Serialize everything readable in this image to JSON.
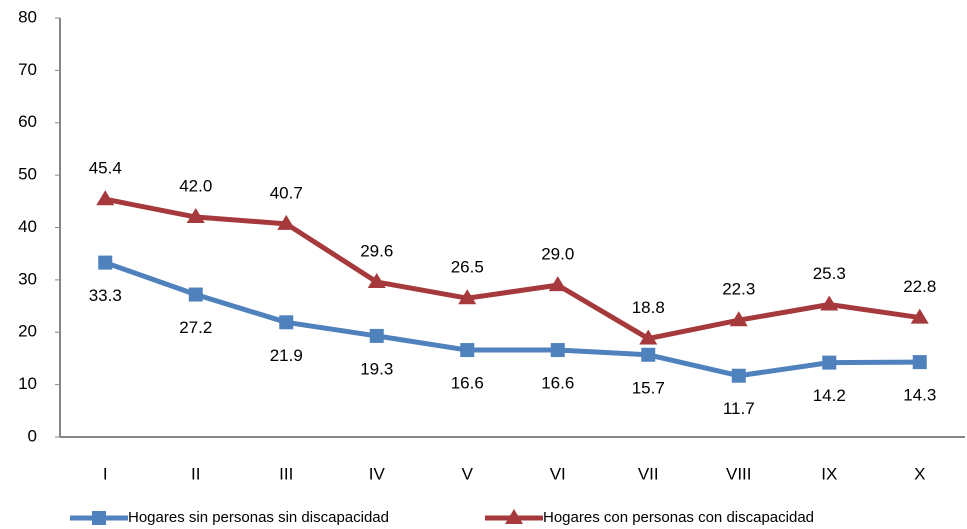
{
  "chart_data": {
    "type": "line",
    "categories": [
      "I",
      "II",
      "III",
      "IV",
      "V",
      "VI",
      "VII",
      "VIII",
      "IX",
      "X"
    ],
    "series": [
      {
        "name": "Hogares sin personas sin discapacidad",
        "color": "#4f81bd",
        "marker": "square",
        "values": [
          33.3,
          27.2,
          21.9,
          19.3,
          16.6,
          16.6,
          15.7,
          11.7,
          14.2,
          14.3
        ],
        "value_labels": [
          "33.3",
          "27.2",
          "21.9",
          "19.3",
          "16.6",
          "16.6",
          "15.7",
          "11.7",
          "14.2",
          "14.3"
        ]
      },
      {
        "name": "Hogares con personas con discapacidad",
        "color": "#a5393b",
        "marker": "triangle",
        "values": [
          45.4,
          42,
          40.7,
          29.6,
          26.5,
          29,
          18.8,
          22.3,
          25.3,
          22.8
        ],
        "value_labels": [
          "45.4",
          "42.0",
          "40.7",
          "29.6",
          "26.5",
          "29.0",
          "18.8",
          "22.3",
          "25.3",
          "22.8"
        ]
      }
    ],
    "ylim": [
      0,
      80
    ],
    "yticks": [
      0,
      10,
      20,
      30,
      40,
      50,
      60,
      70,
      80
    ],
    "grid": false,
    "legend": "bottom"
  }
}
